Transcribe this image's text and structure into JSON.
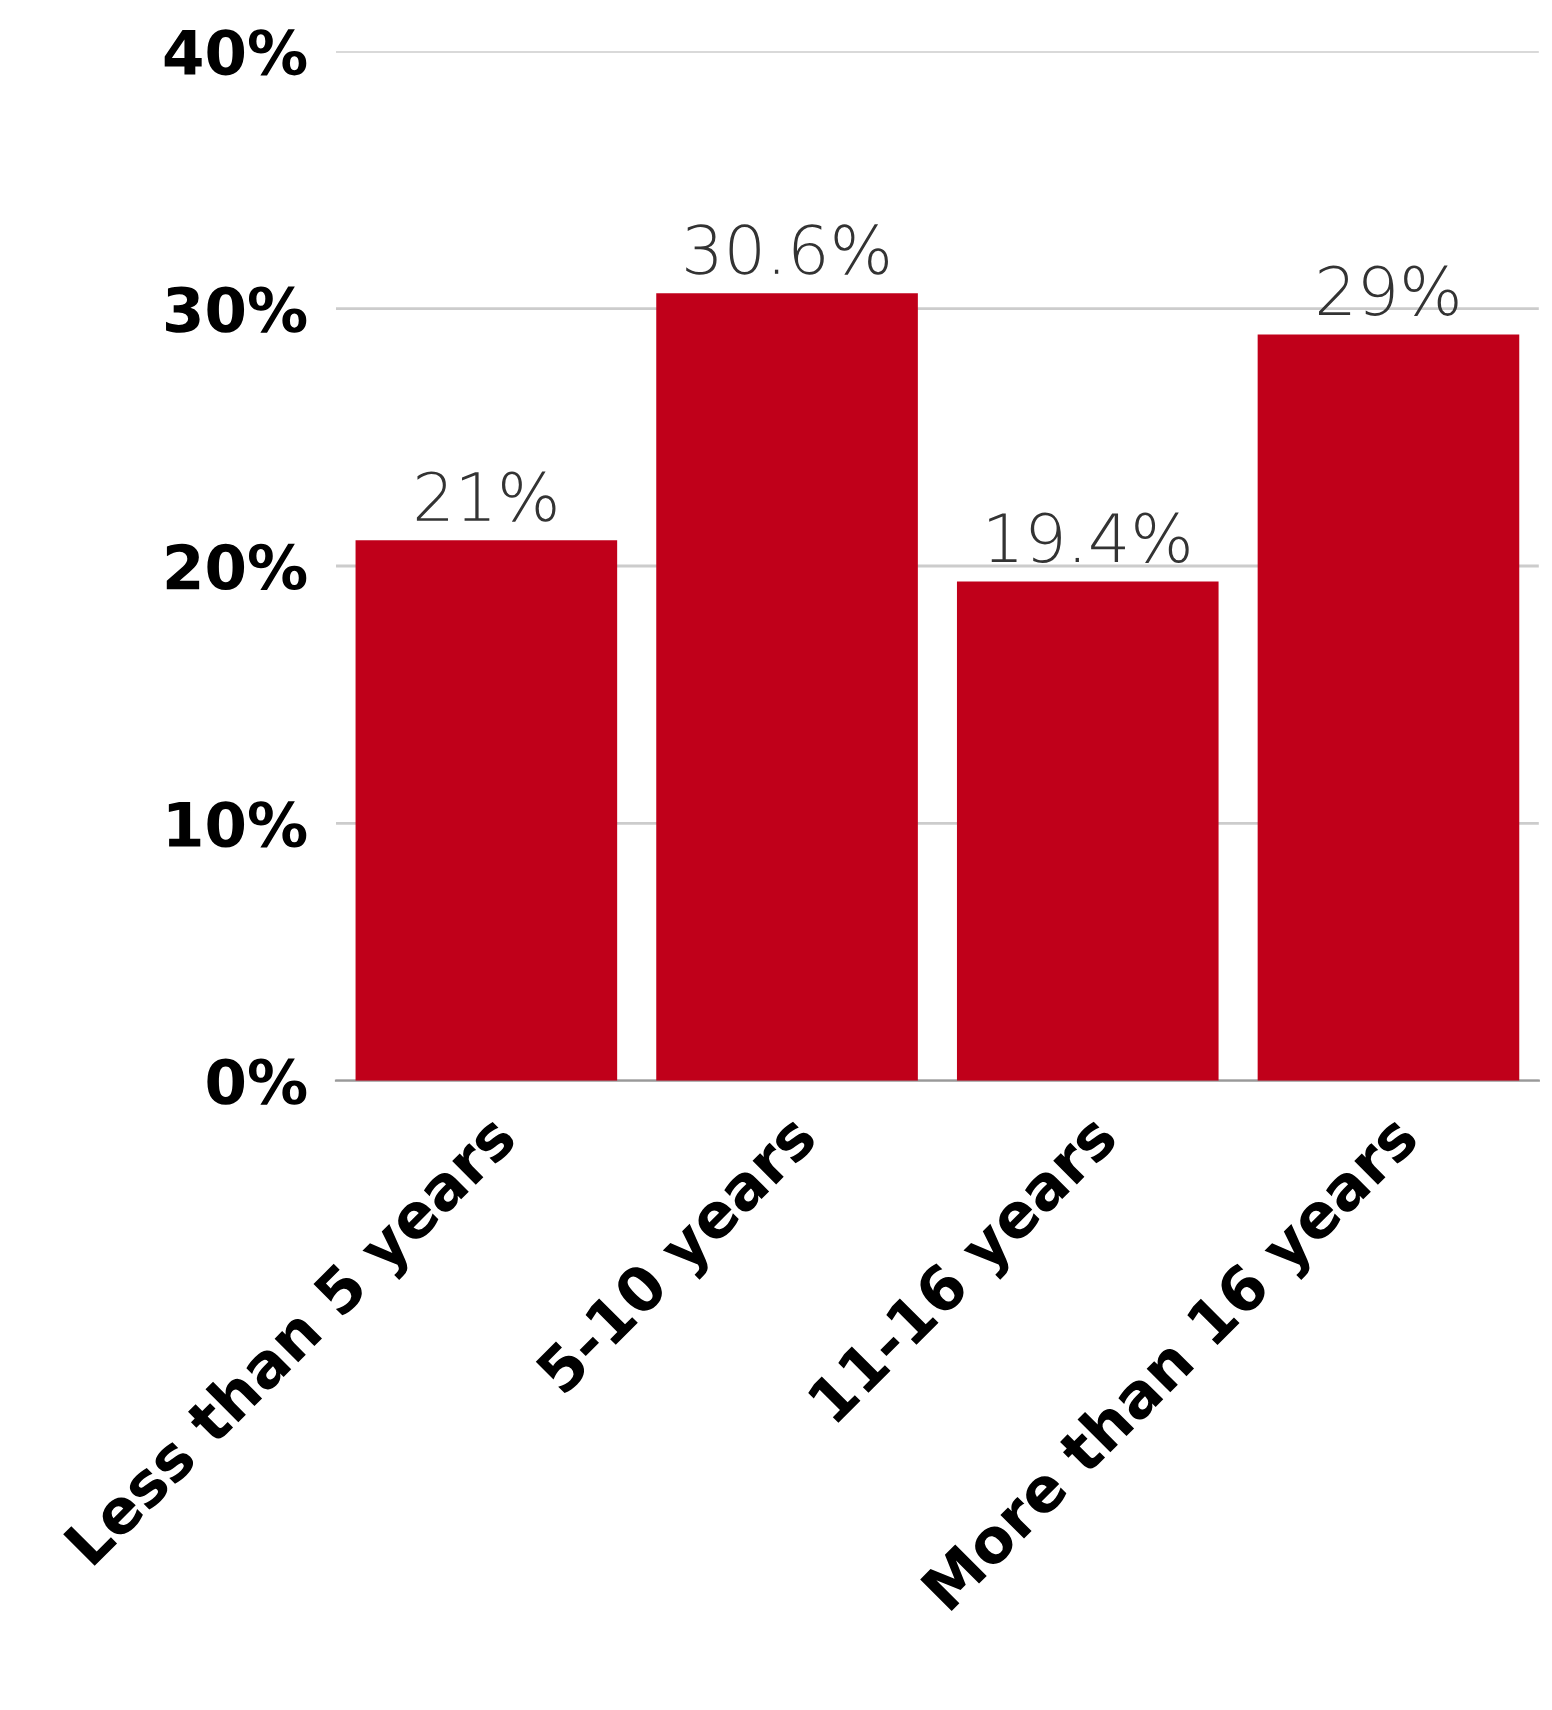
{
  "chart_data": {
    "type": "bar",
    "categories": [
      "Less than 5 years",
      "5-10 years",
      "11-16 years",
      "More than 16 years"
    ],
    "values": [
      21,
      30.6,
      19.4,
      29
    ],
    "value_labels": [
      "21%",
      "30.6%",
      "19.4%",
      "29%"
    ],
    "color": "#c0001a",
    "ylim": [
      0,
      40
    ],
    "yticks": [
      {
        "value": 0,
        "label": "0%"
      },
      {
        "value": 10,
        "label": "10%"
      },
      {
        "value": 20,
        "label": "20%"
      },
      {
        "value": 30,
        "label": "30%"
      },
      {
        "value": 40,
        "label": "40%"
      }
    ],
    "grid": "y"
  }
}
